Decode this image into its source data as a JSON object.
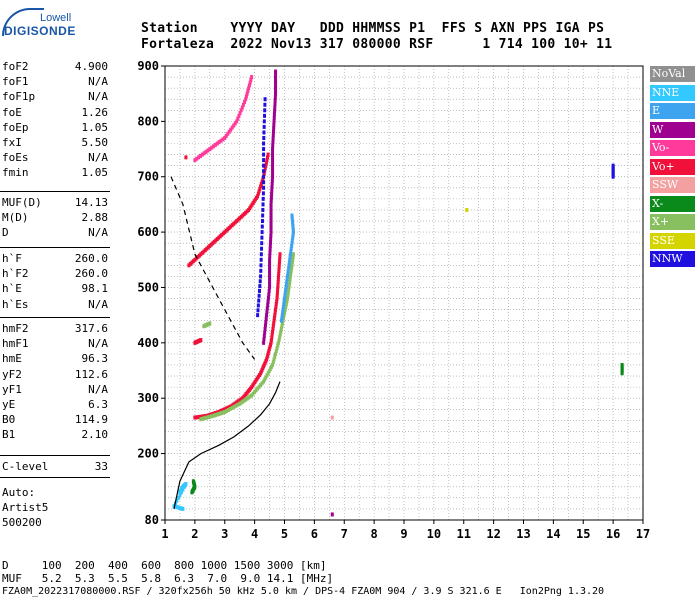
{
  "logo": {
    "line1": "Lowell",
    "line2": "DIGISONDE"
  },
  "header": {
    "line1": "Station    YYYY DAY   DDD HHMMSS P1  FFS S AXN PPS IGA PS",
    "line2": "Fortaleza  2022 Nov13 317 080000 RSF      1 714 100 10+ 11"
  },
  "params_group1": [
    {
      "label": "foF2",
      "value": "4.900"
    },
    {
      "label": "foF1",
      "value": "N/A"
    },
    {
      "label": "foF1p",
      "value": "N/A"
    },
    {
      "label": "foE",
      "value": "1.26"
    },
    {
      "label": "foEp",
      "value": "1.05"
    },
    {
      "label": "fxI",
      "value": "5.50"
    },
    {
      "label": "foEs",
      "value": "N/A"
    },
    {
      "label": "fmin",
      "value": "1.05"
    }
  ],
  "params_group2": [
    {
      "label": "MUF(D)",
      "value": "14.13"
    },
    {
      "label": "M(D)",
      "value": "2.88"
    },
    {
      "label": "D",
      "value": "N/A"
    }
  ],
  "params_group3": [
    {
      "label": "h`F",
      "value": "260.0"
    },
    {
      "label": "h`F2",
      "value": "260.0"
    },
    {
      "label": "h`E",
      "value": "98.1"
    },
    {
      "label": "h`Es",
      "value": "N/A"
    }
  ],
  "params_group4": [
    {
      "label": "hmF2",
      "value": "317.6"
    },
    {
      "label": "hmF1",
      "value": "N/A"
    },
    {
      "label": "hmE",
      "value": "96.3"
    },
    {
      "label": "yF2",
      "value": "112.6"
    },
    {
      "label": "yF1",
      "value": "N/A"
    },
    {
      "label": "yE",
      "value": "6.3"
    },
    {
      "label": "B0",
      "value": "114.9"
    },
    {
      "label": "B1",
      "value": "2.10"
    }
  ],
  "params_group5": [
    {
      "label": "C-level",
      "value": "33"
    }
  ],
  "auto": {
    "line1": "Auto:",
    "line2": "Artist5",
    "line3": "500200"
  },
  "legend": [
    {
      "label": "NoVal",
      "color": "#909090"
    },
    {
      "label": "NNE",
      "color": "#33c8ff"
    },
    {
      "label": "E",
      "color": "#3fa4f0"
    },
    {
      "label": "W",
      "color": "#a00090"
    },
    {
      "label": "Vo-",
      "color": "#ff3a9a"
    },
    {
      "label": "Vo+",
      "color": "#f0103a"
    },
    {
      "label": "SSW",
      "color": "#f5a0a0"
    },
    {
      "label": "X-",
      "color": "#0a8a1a"
    },
    {
      "label": "X+",
      "color": "#88c060"
    },
    {
      "label": "SSE",
      "color": "#d4d400"
    },
    {
      "label": "NNW",
      "color": "#2010e0"
    }
  ],
  "footer": {
    "line1": "D     100  200  400  600  800 1000 1500 3000 [km]",
    "line2": "MUF   5.2  5.3  5.5  5.8  6.3  7.0  9.0 14.1 [MHz]",
    "line3": "FZA0M_2022317080000.RSF / 320fx256h 50 kHz 5.0 km / DPS-4 FZA0M 904 / 3.9 S 321.6 E   Ion2Png 1.3.20"
  },
  "chart_data": {
    "type": "scatter",
    "x_ticks": [
      1,
      2,
      3,
      4,
      5,
      6,
      7,
      8,
      9,
      10,
      11,
      12,
      13,
      14,
      15,
      16,
      17
    ],
    "y_ticks": [
      80,
      200,
      300,
      400,
      500,
      600,
      700,
      800,
      900
    ],
    "xlim": [
      1,
      17
    ],
    "ylim": [
      80,
      900
    ],
    "grid": true,
    "profile_solid": [
      [
        1.3,
        100
      ],
      [
        1.5,
        150
      ],
      [
        1.8,
        185
      ],
      [
        2.2,
        200
      ],
      [
        2.8,
        215
      ],
      [
        3.3,
        230
      ],
      [
        3.8,
        250
      ],
      [
        4.2,
        270
      ],
      [
        4.5,
        290
      ],
      [
        4.7,
        310
      ],
      [
        4.85,
        330
      ]
    ],
    "profile_dashed": [
      [
        1.2,
        700
      ],
      [
        1.6,
        650
      ],
      [
        2.0,
        560
      ],
      [
        2.6,
        500
      ],
      [
        3.2,
        440
      ],
      [
        3.6,
        400
      ],
      [
        4.0,
        370
      ]
    ],
    "traces": [
      {
        "color": "#f0103a",
        "points": [
          [
            2.0,
            265
          ],
          [
            2.4,
            268
          ],
          [
            2.8,
            275
          ],
          [
            3.2,
            285
          ],
          [
            3.6,
            300
          ],
          [
            3.9,
            320
          ],
          [
            4.2,
            345
          ],
          [
            4.4,
            370
          ],
          [
            4.55,
            400
          ],
          [
            4.65,
            440
          ],
          [
            4.75,
            480
          ],
          [
            4.8,
            520
          ],
          [
            4.85,
            560
          ]
        ]
      },
      {
        "color": "#88c060",
        "points": [
          [
            2.2,
            262
          ],
          [
            2.6,
            268
          ],
          [
            3.0,
            275
          ],
          [
            3.5,
            290
          ],
          [
            3.9,
            305
          ],
          [
            4.3,
            330
          ],
          [
            4.6,
            360
          ],
          [
            4.8,
            400
          ],
          [
            4.95,
            440
          ],
          [
            5.1,
            480
          ],
          [
            5.2,
            520
          ],
          [
            5.3,
            560
          ]
        ]
      },
      {
        "color": "#3fa4f0",
        "points": [
          [
            4.9,
            440
          ],
          [
            5.0,
            480
          ],
          [
            5.1,
            520
          ],
          [
            5.2,
            560
          ],
          [
            5.3,
            600
          ],
          [
            5.25,
            630
          ]
        ]
      },
      {
        "color": "#f0103a",
        "points": [
          [
            1.8,
            540
          ],
          [
            2.2,
            560
          ],
          [
            2.6,
            580
          ],
          [
            3.0,
            600
          ],
          [
            3.4,
            620
          ],
          [
            3.8,
            640
          ],
          [
            4.1,
            665
          ],
          [
            4.3,
            700
          ],
          [
            4.45,
            740
          ]
        ]
      },
      {
        "color": "#ff3a9a",
        "points": [
          [
            2.0,
            730
          ],
          [
            2.5,
            750
          ],
          [
            3.0,
            770
          ],
          [
            3.4,
            800
          ],
          [
            3.7,
            840
          ],
          [
            3.9,
            880
          ]
        ]
      },
      {
        "color": "#a00090",
        "points": [
          [
            4.3,
            400
          ],
          [
            4.4,
            450
          ],
          [
            4.5,
            500
          ],
          [
            4.5,
            550
          ],
          [
            4.55,
            600
          ],
          [
            4.55,
            650
          ],
          [
            4.6,
            700
          ],
          [
            4.6,
            750
          ],
          [
            4.65,
            800
          ],
          [
            4.7,
            850
          ],
          [
            4.7,
            890
          ]
        ]
      },
      {
        "color": "#2010e0",
        "points": [
          [
            4.1,
            450
          ],
          [
            4.2,
            520
          ],
          [
            4.25,
            600
          ],
          [
            4.3,
            680
          ],
          [
            4.3,
            760
          ],
          [
            4.35,
            840
          ]
        ]
      },
      {
        "color": "#33c8ff",
        "points": [
          [
            1.5,
            130
          ],
          [
            1.6,
            140
          ],
          [
            1.7,
            145
          ],
          [
            1.3,
            105
          ],
          [
            1.6,
            100
          ]
        ]
      },
      {
        "color": "#0a8a1a",
        "points": [
          [
            1.9,
            130
          ],
          [
            2.0,
            140
          ],
          [
            1.95,
            150
          ]
        ]
      },
      {
        "color": "#2010e0",
        "points": [
          [
            16.0,
            720
          ],
          [
            16.0,
            700
          ]
        ]
      },
      {
        "color": "#0a8a1a",
        "points": [
          [
            16.3,
            360
          ],
          [
            16.3,
            345
          ]
        ]
      },
      {
        "color": "#f5a0a0",
        "points": [
          [
            6.6,
            265
          ]
        ]
      },
      {
        "color": "#a00090",
        "points": [
          [
            6.6,
            90
          ]
        ]
      },
      {
        "color": "#d4d400",
        "points": [
          [
            11.1,
            640
          ]
        ]
      },
      {
        "color": "#f0103a",
        "points": [
          [
            2.0,
            400
          ],
          [
            2.2,
            405
          ]
        ]
      },
      {
        "color": "#88c060",
        "points": [
          [
            2.3,
            430
          ],
          [
            2.5,
            435
          ]
        ]
      },
      {
        "color": "#f0103a",
        "points": [
          [
            1.7,
            735
          ]
        ]
      }
    ]
  }
}
